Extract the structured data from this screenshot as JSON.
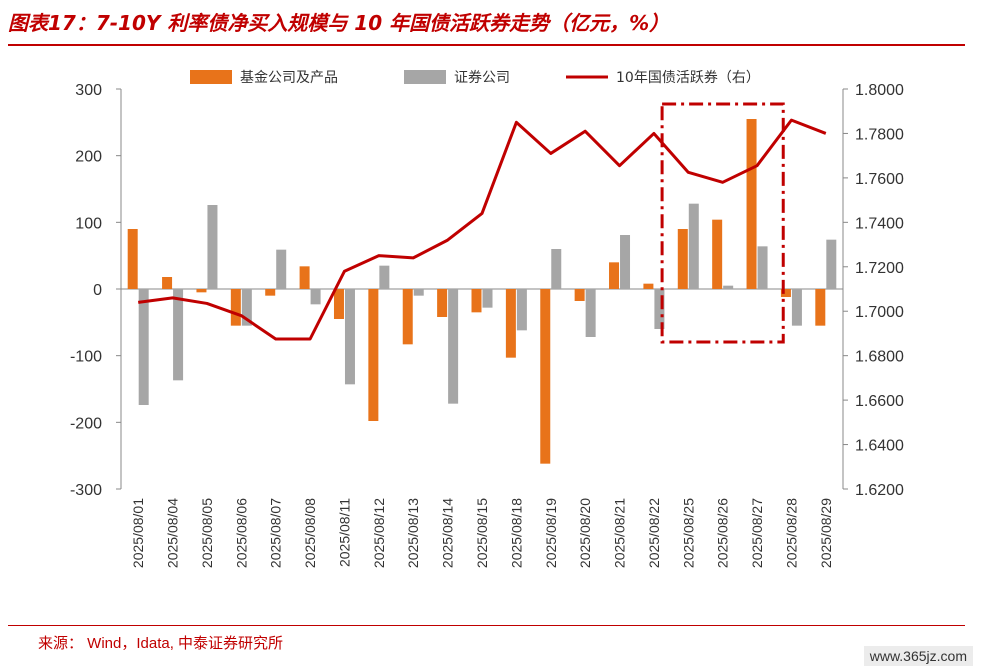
{
  "header": {
    "title": "图表17：7-10Y 利率债净买入规模与 10 年国债活跃券走势（亿元，%）"
  },
  "footer": {
    "source": "来源：   Wind，Idata, 中泰证券研究所",
    "watermark": "www.365jz.com"
  },
  "chart_data": {
    "type": "bar",
    "categories": [
      "2025/08/01",
      "2025/08/04",
      "2025/08/05",
      "2025/08/06",
      "2025/08/07",
      "2025/08/08",
      "2025/08/11",
      "2025/08/12",
      "2025/08/13",
      "2025/08/14",
      "2025/08/15",
      "2025/08/18",
      "2025/08/19",
      "2025/08/20",
      "2025/08/21",
      "2025/08/22",
      "2025/08/25",
      "2025/08/26",
      "2025/08/27",
      "2025/08/28",
      "2025/08/29"
    ],
    "series": [
      {
        "name": "基金公司及产品",
        "type": "bar",
        "axis": "left",
        "color": "#e8731a",
        "values": [
          90,
          18,
          -5,
          -55,
          -10,
          34,
          -45,
          -198,
          -83,
          -42,
          -35,
          -103,
          -262,
          -18,
          40,
          8,
          90,
          104,
          255,
          -12,
          -55
        ]
      },
      {
        "name": "证券公司",
        "type": "bar",
        "axis": "left",
        "color": "#a6a6a6",
        "values": [
          -174,
          -137,
          126,
          -55,
          59,
          -23,
          -143,
          35,
          -10,
          -172,
          -28,
          -62,
          60,
          -72,
          81,
          -60,
          128,
          5,
          64,
          -55,
          74
        ]
      },
      {
        "name": "10年国债活跃券（右）",
        "type": "line",
        "axis": "right",
        "color": "#c00000",
        "values": [
          1.704,
          1.706,
          1.7035,
          1.698,
          1.6875,
          1.6875,
          1.718,
          1.725,
          1.724,
          1.732,
          1.744,
          1.785,
          1.771,
          1.781,
          1.7655,
          1.78,
          1.7625,
          1.758,
          1.7655,
          1.786,
          1.78
        ]
      }
    ],
    "y_left": {
      "min": -300,
      "max": 300,
      "ticks": [
        "300",
        "200",
        "100",
        "0",
        "-100",
        "-200",
        "-300"
      ]
    },
    "y_right": {
      "min": 1.62,
      "max": 1.8,
      "ticks": [
        "1.8000",
        "1.7800",
        "1.7600",
        "1.7400",
        "1.7200",
        "1.7000",
        "1.6800",
        "1.6600",
        "1.6400",
        "1.6200"
      ]
    },
    "legend_position": "top",
    "highlight_range": [
      "2025/08/25",
      "2025/08/27"
    ],
    "grid": false
  }
}
